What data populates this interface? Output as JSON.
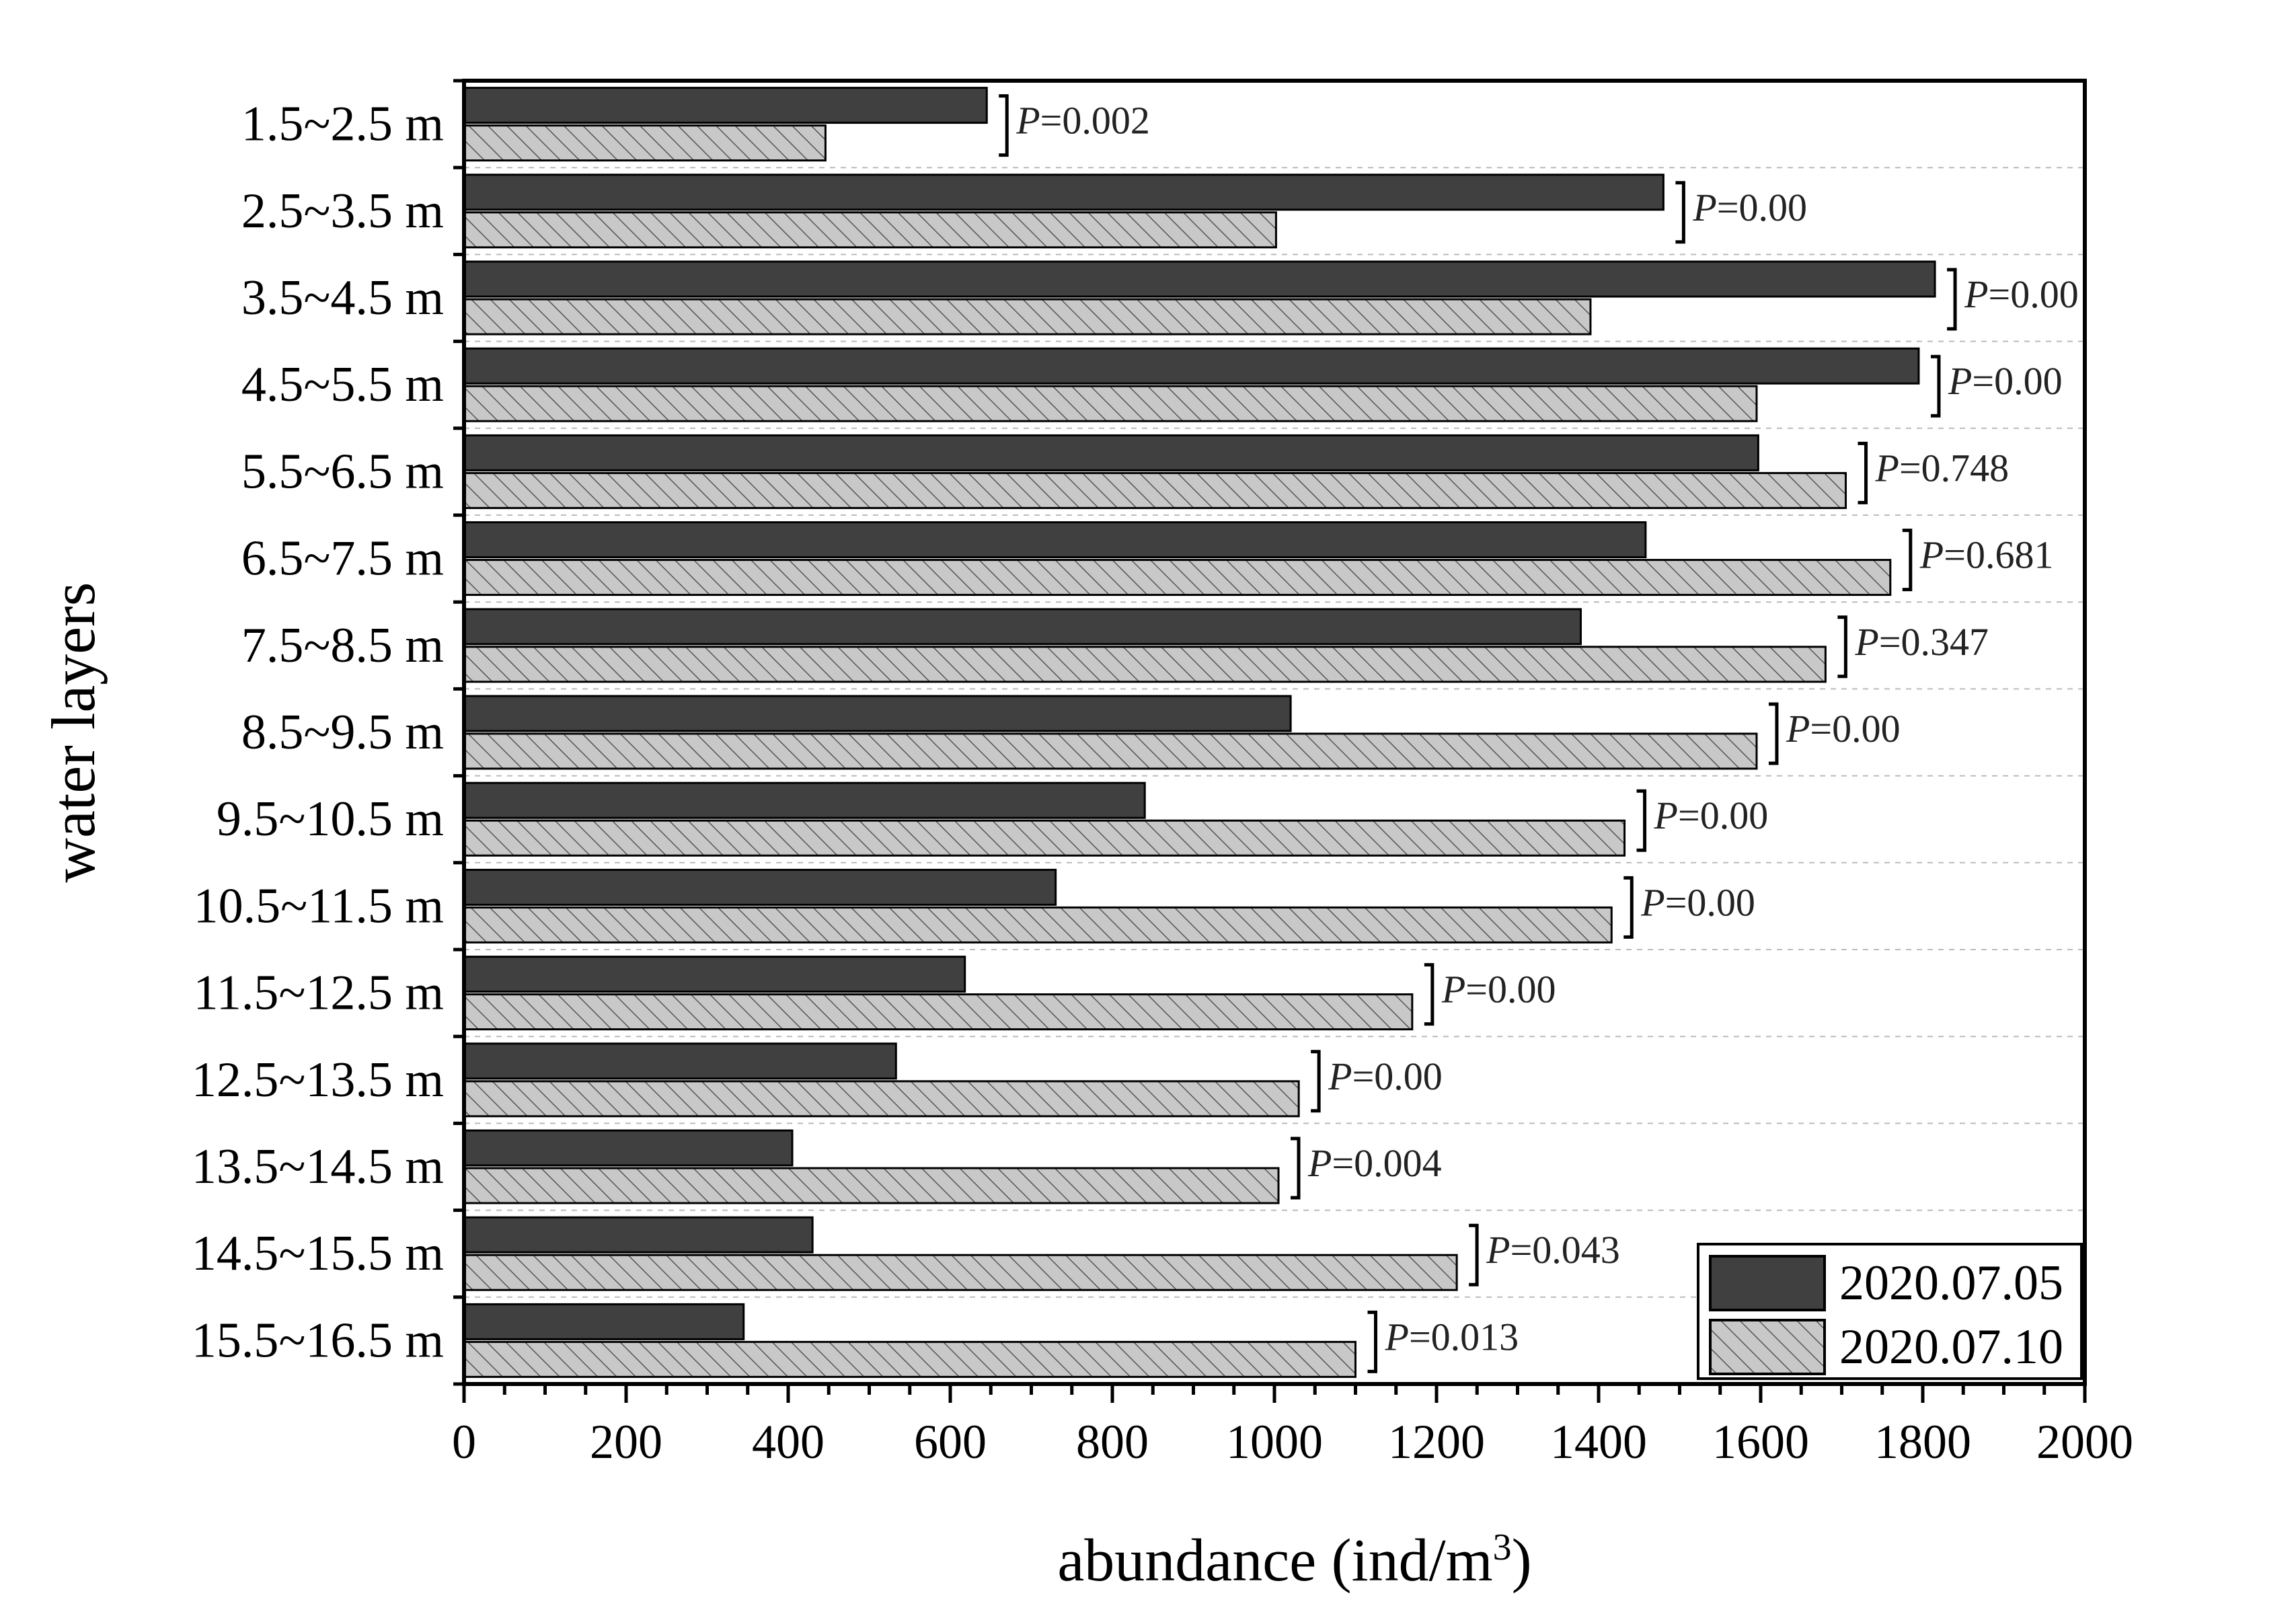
{
  "chart_data": {
    "type": "bar",
    "orientation": "horizontal",
    "xlabel": "abundance (ind/m",
    "xlabel_superscript": "3",
    "xlabel_suffix": ")",
    "ylabel": "water layers",
    "xlim": [
      0,
      2000
    ],
    "x_ticks": [
      "0",
      "200",
      "400",
      "600",
      "800",
      "1000",
      "1200",
      "1400",
      "1600",
      "1800",
      "2000"
    ],
    "grid": "horizontal dashed",
    "legend_position": "bottom-right",
    "categories": [
      "1.5~2.5 m",
      "2.5~3.5 m",
      "3.5~4.5 m",
      "4.5~5.5 m",
      "5.5~6.5 m",
      "6.5~7.5 m",
      "7.5~8.5 m",
      "8.5~9.5 m",
      "9.5~10.5 m",
      "10.5~11.5 m",
      "11.5~12.5 m",
      "12.5~13.5 m",
      "13.5~14.5 m",
      "14.5~15.5 m",
      "15.5~16.5 m"
    ],
    "series": [
      {
        "name": "2020.07.05",
        "color": "#404040",
        "pattern": "solid",
        "values": [
          645,
          1480,
          1815,
          1795,
          1597,
          1458,
          1378,
          1020,
          840,
          730,
          618,
          533,
          405,
          430,
          345
        ]
      },
      {
        "name": "2020.07.10",
        "color": "#c8c8c8",
        "pattern": "hatched",
        "values": [
          446,
          1002,
          1390,
          1595,
          1705,
          1760,
          1680,
          1595,
          1432,
          1416,
          1170,
          1030,
          1005,
          1225,
          1100
        ]
      }
    ],
    "annotations": [
      {
        "prefix": "P",
        "text": "=0.002"
      },
      {
        "prefix": "P",
        "text": "=0.00"
      },
      {
        "prefix": "P",
        "text": "=0.00"
      },
      {
        "prefix": "P",
        "text": "=0.00"
      },
      {
        "prefix": "P",
        "text": "=0.748"
      },
      {
        "prefix": "P",
        "text": "=0.681"
      },
      {
        "prefix": "P",
        "text": "=0.347"
      },
      {
        "prefix": "P",
        "text": "=0.00"
      },
      {
        "prefix": "P",
        "text": "=0.00"
      },
      {
        "prefix": "P",
        "text": "=0.00"
      },
      {
        "prefix": "P",
        "text": "=0.00"
      },
      {
        "prefix": "P",
        "text": "=0.00"
      },
      {
        "prefix": "P",
        "text": "=0.004"
      },
      {
        "prefix": "P",
        "text": "=0.043"
      },
      {
        "prefix": "P",
        "text": "=0.013"
      }
    ]
  }
}
